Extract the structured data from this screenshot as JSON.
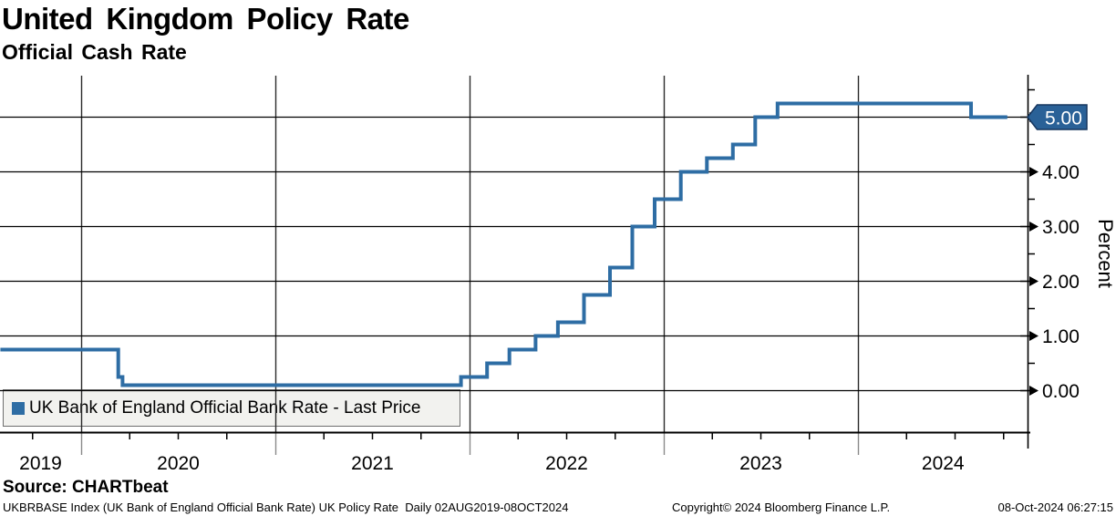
{
  "header": {
    "title": "United Kingdom Policy Rate",
    "subtitle": "Official Cash Rate"
  },
  "legend": {
    "label": "UK Bank of England Official Bank Rate - Last Price",
    "marker_color": "#2e6da4"
  },
  "chart_data": {
    "type": "line",
    "step": true,
    "title": "United Kingdom Policy Rate",
    "subtitle": "Official Cash Rate",
    "series_name": "UK Bank of England Official Bank Rate - Last Price",
    "ylabel": "Percent",
    "last_price": "5.00",
    "last_price_tag_color": "#2a6197",
    "line_color": "#2e6da4",
    "grid": true,
    "x_unit": "decimal_year",
    "x_range": [
      2019.584,
      2024.769
    ],
    "x_period_label": "Daily 02AUG2019-08OCT2024",
    "x_tick_years": [
      "2019",
      "2020",
      "2021",
      "2022",
      "2023",
      "2024"
    ],
    "ylim": [
      0,
      5.77
    ],
    "y_ticks": [
      0,
      1,
      2,
      3,
      4,
      5
    ],
    "y_tick_labels": [
      "0.00",
      "1.00",
      "2.00",
      "3.00",
      "4.00",
      "5.00"
    ],
    "y_minor_step": 0.5,
    "points": [
      {
        "date": "02AUG2019",
        "t": 2019.584,
        "rate": 0.75
      },
      {
        "date": "11MAR2020",
        "t": 2020.191,
        "rate": 0.25
      },
      {
        "date": "19MAR2020",
        "t": 2020.213,
        "rate": 0.1
      },
      {
        "date": "16DEC2021",
        "t": 2021.956,
        "rate": 0.25
      },
      {
        "date": "03FEB2022",
        "t": 2022.09,
        "rate": 0.5
      },
      {
        "date": "17MAR2022",
        "t": 2022.205,
        "rate": 0.75
      },
      {
        "date": "05MAY2022",
        "t": 2022.34,
        "rate": 1.0
      },
      {
        "date": "16JUN2022",
        "t": 2022.455,
        "rate": 1.25
      },
      {
        "date": "04AUG2022",
        "t": 2022.589,
        "rate": 1.75
      },
      {
        "date": "22SEP2022",
        "t": 2022.723,
        "rate": 2.25
      },
      {
        "date": "03NOV2022",
        "t": 2022.838,
        "rate": 3.0
      },
      {
        "date": "15DEC2022",
        "t": 2022.953,
        "rate": 3.5
      },
      {
        "date": "02FEB2023",
        "t": 2023.088,
        "rate": 4.0
      },
      {
        "date": "23MAR2023",
        "t": 2023.222,
        "rate": 4.25
      },
      {
        "date": "11MAY2023",
        "t": 2023.356,
        "rate": 4.5
      },
      {
        "date": "22JUN2023",
        "t": 2023.471,
        "rate": 5.0
      },
      {
        "date": "03AUG2023",
        "t": 2023.586,
        "rate": 5.25
      },
      {
        "date": "01AUG2024",
        "t": 2024.582,
        "rate": 5.0
      }
    ]
  },
  "footer": {
    "source": "Source: CHARTbeat",
    "description": "UKBRBASE Index (UK Bank of England Official Bank Rate) UK Policy Rate  Daily 02AUG2019-08OCT2024",
    "copyright": "Copyright© 2024 Bloomberg Finance L.P.",
    "timestamp": "08-Oct-2024 06:27:15"
  }
}
